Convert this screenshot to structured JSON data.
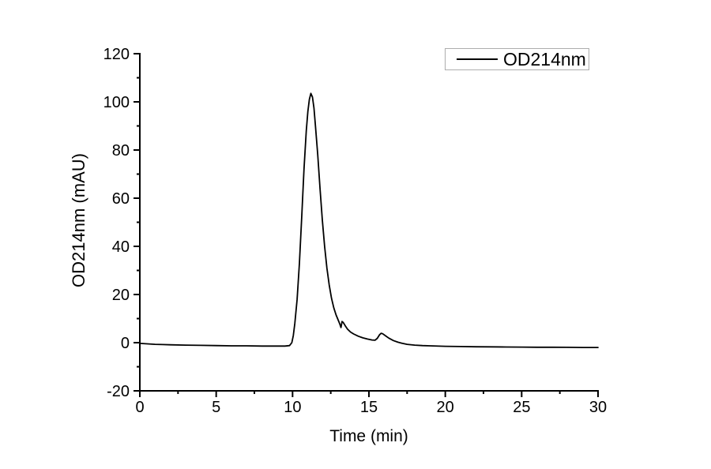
{
  "figure": {
    "background": "#ffffff"
  },
  "chart_data": {
    "type": "line",
    "title": "",
    "xlabel": "Time (min)",
    "ylabel": "OD214nm (mAU)",
    "xlim": [
      0,
      30
    ],
    "ylim": [
      -20,
      120
    ],
    "x_major_ticks": [
      0,
      5,
      10,
      15,
      20,
      25,
      30
    ],
    "x_minor_step": 2.5,
    "y_major_ticks": [
      -20,
      0,
      20,
      40,
      60,
      80,
      100,
      120
    ],
    "y_minor_step": 10,
    "grid": false,
    "axis_color": "#000000",
    "legend": {
      "position": "top-right",
      "border_color": "#adadad",
      "entries": [
        {
          "label": "OD214nm",
          "color": "#000000"
        }
      ]
    },
    "annotations": {
      "main_peak": {
        "time_min": 11.2,
        "value_mau": 103.5
      },
      "shoulder_peak": {
        "time_min": 13.3,
        "value_mau": 8.8
      },
      "minor_peak": {
        "time_min": 15.8,
        "value_mau": 3.9
      }
    },
    "series": [
      {
        "name": "OD214nm",
        "color": "#000000",
        "points": [
          [
            0,
            -0.3
          ],
          [
            0.5,
            -0.5
          ],
          [
            1,
            -0.7
          ],
          [
            1.5,
            -0.8
          ],
          [
            2,
            -0.9
          ],
          [
            3,
            -1.0
          ],
          [
            4,
            -1.1
          ],
          [
            5,
            -1.2
          ],
          [
            6,
            -1.3
          ],
          [
            7,
            -1.3
          ],
          [
            8,
            -1.4
          ],
          [
            9,
            -1.4
          ],
          [
            9.5,
            -1.4
          ],
          [
            9.8,
            -1.2
          ],
          [
            9.95,
            0
          ],
          [
            10.05,
            3
          ],
          [
            10.15,
            8
          ],
          [
            10.3,
            18
          ],
          [
            10.45,
            33
          ],
          [
            10.6,
            52
          ],
          [
            10.75,
            72
          ],
          [
            10.9,
            88
          ],
          [
            11.0,
            96
          ],
          [
            11.1,
            101
          ],
          [
            11.2,
            103.5
          ],
          [
            11.3,
            102
          ],
          [
            11.4,
            97.5
          ],
          [
            11.5,
            90
          ],
          [
            11.65,
            78
          ],
          [
            11.8,
            64
          ],
          [
            11.95,
            51
          ],
          [
            12.1,
            40
          ],
          [
            12.25,
            31
          ],
          [
            12.4,
            24
          ],
          [
            12.55,
            18.5
          ],
          [
            12.7,
            14.5
          ],
          [
            12.85,
            11.5
          ],
          [
            13.0,
            9.2
          ],
          [
            13.1,
            7.6
          ],
          [
            13.17,
            6.3
          ],
          [
            13.24,
            8.8
          ],
          [
            13.32,
            8.4
          ],
          [
            13.45,
            7.0
          ],
          [
            13.6,
            5.6
          ],
          [
            13.8,
            4.4
          ],
          [
            14.0,
            3.6
          ],
          [
            14.3,
            2.7
          ],
          [
            14.6,
            2.0
          ],
          [
            14.9,
            1.5
          ],
          [
            15.2,
            1.1
          ],
          [
            15.4,
            1.0
          ],
          [
            15.55,
            1.8
          ],
          [
            15.7,
            3.3
          ],
          [
            15.8,
            3.9
          ],
          [
            15.9,
            3.7
          ],
          [
            16.1,
            2.8
          ],
          [
            16.3,
            1.9
          ],
          [
            16.6,
            0.9
          ],
          [
            16.9,
            0.2
          ],
          [
            17.2,
            -0.3
          ],
          [
            17.5,
            -0.7
          ],
          [
            18,
            -1.0
          ],
          [
            18.5,
            -1.2
          ],
          [
            19,
            -1.3
          ],
          [
            20,
            -1.5
          ],
          [
            21,
            -1.6
          ],
          [
            22,
            -1.7
          ],
          [
            23,
            -1.75
          ],
          [
            24,
            -1.8
          ],
          [
            25,
            -1.85
          ],
          [
            26,
            -1.9
          ],
          [
            27,
            -1.9
          ],
          [
            28,
            -1.95
          ],
          [
            29,
            -2.0
          ],
          [
            30,
            -2.0
          ]
        ]
      }
    ]
  }
}
